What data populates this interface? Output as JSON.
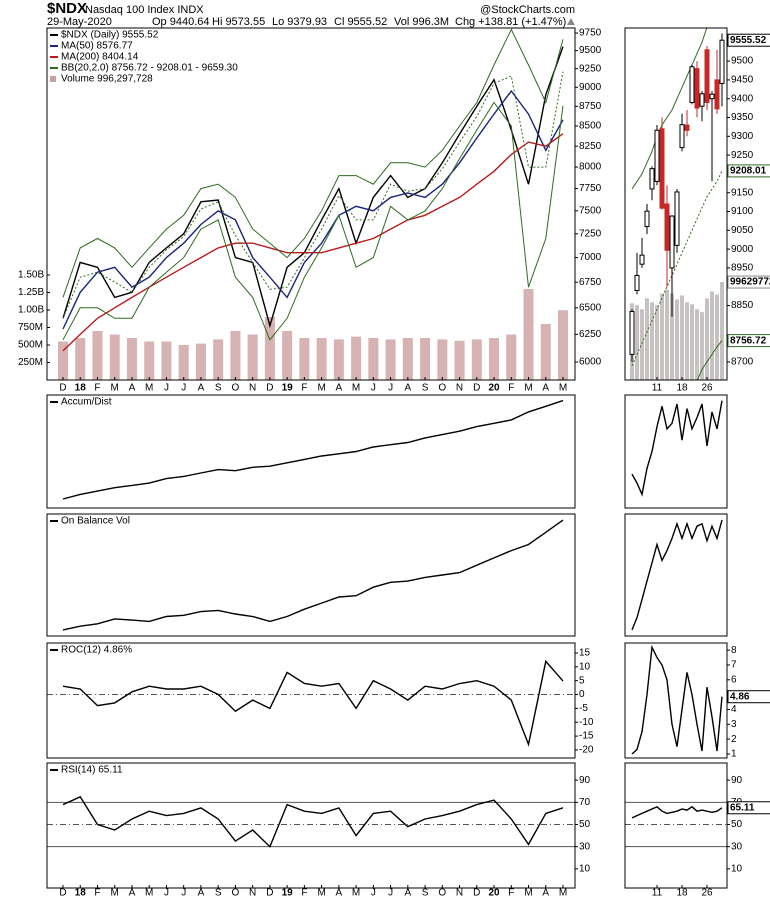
{
  "header": {
    "symbol": "$NDX",
    "name": "Nasdaq 100 Index INDX",
    "source": "@StockCharts.com",
    "date": "29-May-2020",
    "open": "Op 9440.64",
    "high": "Hi 9573.55",
    "low": "Lo 9379.93",
    "close": "Cl 9555.52",
    "volume": "Vol 996.3M",
    "change": "Chg +138.81 (+1.47%)"
  },
  "chart_data": [
    {
      "type": "line",
      "log": true,
      "categories": [
        "D",
        "18",
        "F",
        "M",
        "A",
        "M",
        "J",
        "J",
        "A",
        "S",
        "O",
        "N",
        "D",
        "19",
        "F",
        "M",
        "A",
        "M",
        "J",
        "J",
        "A",
        "S",
        "O",
        "N",
        "D",
        "20",
        "F",
        "M",
        "A",
        "M"
      ],
      "ylim": [
        5843,
        9822
      ],
      "yticks": [
        9750,
        9500,
        9250,
        9000,
        8750,
        8500,
        8250,
        8000,
        7750,
        7500,
        7250,
        7000,
        6750,
        6500,
        6250,
        6000
      ],
      "y2lim": [
        0,
        5030000000
      ],
      "y2ticks": [
        {
          "value": 1500000000,
          "label": "1.50B"
        },
        {
          "value": 1250000000,
          "label": "1.25B"
        },
        {
          "value": 1000000000,
          "label": "1.00B"
        },
        {
          "value": 750000000,
          "label": "750M"
        },
        {
          "value": 500000000,
          "label": "500M"
        },
        {
          "value": 250000000,
          "label": "250M"
        }
      ],
      "series": [
        {
          "name": "$NDX (Daily) 9555.52",
          "color": "#000000",
          "values": [
            6400,
            6950,
            6900,
            6600,
            6650,
            6950,
            7100,
            7250,
            7600,
            7620,
            7000,
            6950,
            6330,
            6900,
            7050,
            7400,
            7750,
            7150,
            7650,
            7900,
            7650,
            7750,
            8050,
            8400,
            8750,
            9100,
            8450,
            7800,
            8900,
            9555.52
          ]
        },
        {
          "name": "MA(50) 8576.77",
          "color": "#1a237e",
          "values": [
            6300,
            6650,
            6850,
            6900,
            6700,
            6800,
            7000,
            7150,
            7350,
            7500,
            7400,
            7000,
            6800,
            6600,
            6950,
            7150,
            7450,
            7550,
            7500,
            7650,
            7700,
            7650,
            7800,
            8050,
            8350,
            8650,
            8950,
            8650,
            8200,
            8576.77
          ]
        },
        {
          "name": "MA(200) 8404.14",
          "color": "#b71c1c",
          "values": [
            6100,
            6250,
            6400,
            6500,
            6600,
            6700,
            6800,
            6900,
            7000,
            7100,
            7150,
            7150,
            7100,
            7050,
            7050,
            7050,
            7100,
            7150,
            7200,
            7300,
            7400,
            7450,
            7550,
            7650,
            7800,
            7950,
            8150,
            8300,
            8250,
            8404.14
          ]
        },
        {
          "name": "BB(20,2.0) 8756.72 - 9208.01 - 9659.30",
          "color": "#2e6b1f",
          "upper": [
            6600,
            7100,
            7200,
            7100,
            6900,
            7100,
            7300,
            7450,
            7750,
            7800,
            7650,
            7300,
            7150,
            7000,
            7200,
            7500,
            7900,
            7900,
            7800,
            8050,
            8050,
            8000,
            8200,
            8500,
            8800,
            9300,
            9800,
            9300,
            8800,
            9659.3
          ],
          "middle": [
            6400,
            6800,
            6850,
            6750,
            6650,
            6900,
            7080,
            7220,
            7520,
            7600,
            7230,
            6950,
            6680,
            6700,
            7000,
            7300,
            7670,
            7400,
            7400,
            7800,
            7720,
            7750,
            7980,
            8300,
            8620,
            9050,
            9150,
            8000,
            8000,
            9208.01
          ],
          "lower": [
            6200,
            6500,
            6500,
            6400,
            6400,
            6700,
            6850,
            7000,
            7300,
            7400,
            6800,
            6600,
            6200,
            6400,
            6800,
            7100,
            7450,
            6900,
            7000,
            7550,
            7400,
            7500,
            7750,
            8100,
            8450,
            8800,
            8500,
            6700,
            7200,
            8756.72
          ]
        },
        {
          "name": "Volume 996,297,728",
          "color": "#cc9f9f",
          "axis": "y2",
          "type": "bar",
          "values": [
            550000000,
            600000000,
            700000000,
            650000000,
            600000000,
            550000000,
            550000000,
            500000000,
            520000000,
            580000000,
            700000000,
            650000000,
            900000000,
            700000000,
            600000000,
            600000000,
            580000000,
            620000000,
            600000000,
            580000000,
            600000000,
            600000000,
            580000000,
            560000000,
            580000000,
            600000000,
            650000000,
            1300000000,
            800000000,
            996297728
          ]
        }
      ]
    },
    {
      "type": "candlestick",
      "x": [
        null,
        null,
        null,
        null,
        null,
        "11",
        null,
        null,
        null,
        null,
        "18",
        null,
        null,
        null,
        null,
        "26",
        null,
        null,
        null
      ],
      "ylim": [
        8652,
        9588
      ],
      "yticks": [
        9500,
        9450,
        9400,
        9350,
        9300,
        9250,
        9150,
        9100,
        9050,
        9000,
        8950,
        8850,
        8700
      ],
      "y2lim": [
        0,
        3580000000
      ],
      "open": [
        8720,
        8890,
        8960,
        9060,
        9160,
        9180,
        9320,
        9120,
        8950,
        9010,
        9270,
        9330,
        9390,
        9480,
        9380,
        9530,
        9400,
        9450,
        9440.64
      ],
      "high": [
        8840,
        8990,
        9030,
        9120,
        9220,
        9330,
        9350,
        9170,
        9090,
        9160,
        9360,
        9370,
        9490,
        9500,
        9420,
        9540,
        9420,
        9530,
        9573.55
      ],
      "low": [
        8700,
        8880,
        8950,
        9040,
        9130,
        9170,
        9105,
        8900,
        8820,
        8990,
        9260,
        9300,
        9385,
        9350,
        9340,
        9370,
        9180,
        9360,
        9379.93
      ],
      "close": [
        8834,
        8930,
        8984,
        9101,
        9214,
        9316,
        9109,
        8997,
        9088,
        9152,
        9331,
        9316,
        9485,
        9375,
        9413,
        9390,
        9412,
        9373,
        9555.52
      ],
      "close_box": true,
      "bb": {
        "color": "#2e6b1f",
        "upper": [
          9160,
          9180,
          9200,
          9230,
          9260,
          9300,
          9330,
          9350,
          9370,
          9400,
          9430,
          9460,
          9490,
          9520,
          9550,
          9590,
          9610,
          9630,
          9659.3
        ],
        "middle": [
          8690,
          8720,
          8750,
          8780,
          8810,
          8840,
          8870,
          8900,
          8930,
          8960,
          8990,
          9020,
          9050,
          9080,
          9110,
          9140,
          9160,
          9180,
          9208.01
        ],
        "lower": [
          8220,
          8260,
          8300,
          8340,
          8380,
          8420,
          8450,
          8480,
          8510,
          8540,
          8570,
          8600,
          8620,
          8650,
          8680,
          8700,
          8720,
          8740,
          8756.72
        ],
        "box": [
          "middle",
          "lower"
        ]
      },
      "volume": {
        "color": "#b9b1b1",
        "box": true,
        "values": [
          780000000,
          760000000,
          720000000,
          830000000,
          790000000,
          760000000,
          880000000,
          920000000,
          880000000,
          820000000,
          860000000,
          790000000,
          770000000,
          720000000,
          690000000,
          830000000,
          900000000,
          870000000,
          996297728
        ]
      }
    },
    {
      "type": "line",
      "ylim": [
        0,
        100
      ],
      "series": [
        {
          "name": "Accum/Dist",
          "color": "#000000",
          "values": [
            8,
            12,
            15,
            18,
            20,
            22,
            26,
            28,
            31,
            34,
            33,
            36,
            37,
            40,
            43,
            46,
            48,
            50,
            54,
            56,
            58,
            62,
            65,
            68,
            72,
            75,
            78,
            85,
            90,
            95
          ]
        }
      ]
    },
    {
      "type": "line",
      "ylim": [
        0,
        100
      ],
      "series": [
        {
          "color": "#000000",
          "values": [
            30,
            22,
            12,
            35,
            50,
            72,
            90,
            70,
            75,
            92,
            60,
            88,
            70,
            80,
            92,
            55,
            85,
            70,
            95
          ]
        }
      ]
    },
    {
      "type": "line",
      "ylim": [
        0,
        100
      ],
      "series": [
        {
          "name": "On Balance Vol",
          "color": "#000000",
          "values": [
            5,
            8,
            10,
            14,
            13,
            12,
            16,
            17,
            20,
            21,
            18,
            16,
            12,
            16,
            22,
            27,
            32,
            33,
            40,
            44,
            45,
            48,
            50,
            52,
            58,
            64,
            70,
            75,
            85,
            95
          ]
        }
      ]
    },
    {
      "type": "line",
      "ylim": [
        0,
        100
      ],
      "series": [
        {
          "color": "#000000",
          "values": [
            5,
            15,
            30,
            45,
            60,
            75,
            62,
            70,
            80,
            92,
            80,
            92,
            80,
            90,
            92,
            78,
            90,
            80,
            95
          ]
        }
      ]
    },
    {
      "type": "line",
      "ylim": [
        -22.9,
        18.6
      ],
      "yticks": [
        15,
        10,
        5,
        0,
        -5,
        -10,
        -15,
        -20
      ],
      "reference_lines": [
        {
          "value": 0,
          "style": "dashed"
        }
      ],
      "series": [
        {
          "name": "ROC(12) 4.86%",
          "color": "#000000",
          "values": [
            3,
            2,
            -4,
            -3,
            1,
            3,
            2,
            2,
            3,
            0,
            -6,
            -2,
            -5,
            8,
            4,
            3,
            4,
            -5,
            5,
            2,
            -2,
            3,
            2,
            4,
            5,
            3,
            -2,
            -18,
            12,
            4.86
          ]
        }
      ]
    },
    {
      "type": "line",
      "ylim": [
        0.73,
        8.48
      ],
      "yticks": [
        8,
        7,
        6,
        4,
        3,
        2,
        1
      ],
      "series": [
        {
          "color": "#000000",
          "box": true,
          "values": [
            1.0,
            1.3,
            2.5,
            5,
            8.2,
            7.5,
            7.0,
            6,
            3,
            1.5,
            4,
            6.5,
            5,
            3,
            1.2,
            5.5,
            3.5,
            1.2,
            4.86
          ]
        }
      ]
    },
    {
      "type": "line",
      "categories": [
        "D",
        "18",
        "F",
        "M",
        "A",
        "M",
        "J",
        "J",
        "A",
        "S",
        "O",
        "N",
        "D",
        "19",
        "F",
        "M",
        "A",
        "M",
        "J",
        "J",
        "A",
        "S",
        "O",
        "N",
        "D",
        "20",
        "F",
        "M",
        "A",
        "M"
      ],
      "ylim": [
        -7.3,
        105.5
      ],
      "yticks": [
        90,
        70,
        50,
        30,
        10
      ],
      "reference_lines": [
        {
          "value": 70,
          "style": "solid"
        },
        {
          "value": 50,
          "style": "dashed"
        },
        {
          "value": 30,
          "style": "solid"
        }
      ],
      "series": [
        {
          "name": "RSI(14) 65.11",
          "color": "#000000",
          "values": [
            68,
            75,
            50,
            45,
            55,
            62,
            58,
            60,
            65,
            55,
            35,
            45,
            30,
            68,
            62,
            60,
            65,
            40,
            60,
            62,
            48,
            55,
            58,
            62,
            68,
            72,
            55,
            32,
            60,
            65.11
          ]
        }
      ]
    },
    {
      "type": "line",
      "x": [
        null,
        null,
        null,
        null,
        null,
        "11",
        null,
        null,
        null,
        null,
        "18",
        null,
        null,
        null,
        null,
        "26",
        null,
        null,
        null
      ],
      "ylim": [
        -7.3,
        105.5
      ],
      "yticks": [
        90,
        70,
        50,
        30,
        10
      ],
      "reference_lines": [
        {
          "value": 70,
          "style": "solid"
        },
        {
          "value": 50,
          "style": "dashed"
        },
        {
          "value": 30,
          "style": "solid"
        }
      ],
      "series": [
        {
          "color": "#000000",
          "box": true,
          "values": [
            56,
            58,
            60,
            62,
            64,
            66,
            62,
            60,
            61,
            62,
            64,
            63,
            66,
            62,
            63,
            62,
            61,
            62,
            65.11
          ]
        }
      ]
    }
  ]
}
